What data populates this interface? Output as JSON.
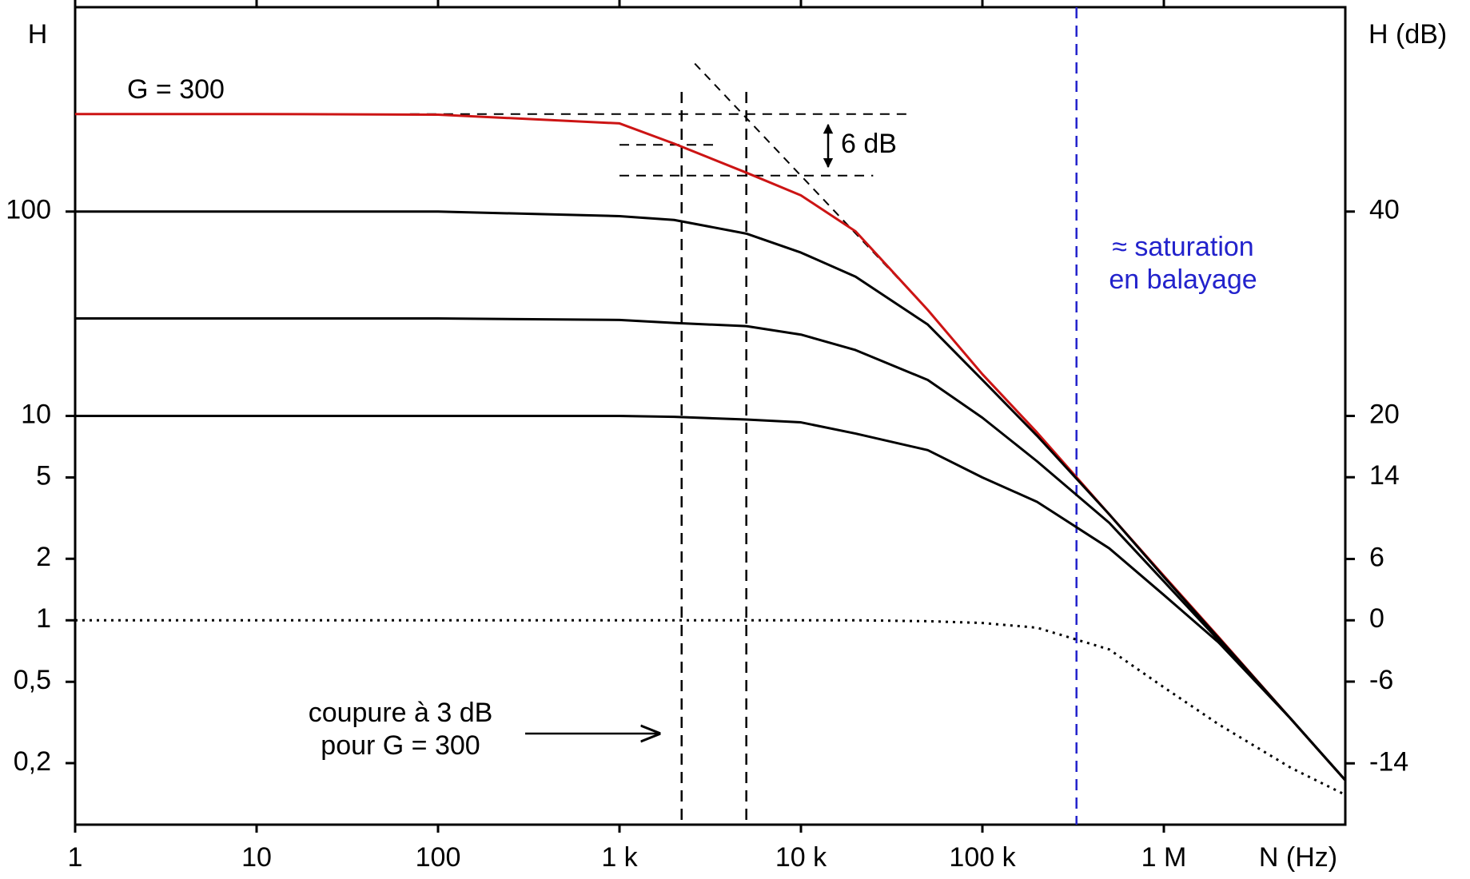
{
  "chart_data": {
    "type": "line",
    "y_label": "H",
    "y2_label": "H  (dB)",
    "x_label": "N  (Hz)",
    "xscale": "log",
    "yscale": "log",
    "xlim": [
      1,
      10000000
    ],
    "ylim": [
      0.1,
      1000
    ],
    "y2lim": [
      -20,
      60
    ],
    "xticks": [
      1,
      10,
      100,
      {
        "value": 1000,
        "label": "1 k"
      },
      {
        "value": 10000,
        "label": "10 k"
      },
      {
        "value": 100000,
        "label": "100 k"
      },
      {
        "value": 1000000,
        "label": "1 M"
      }
    ],
    "yticks": [
      {
        "value": 0.2,
        "label": "0,2"
      },
      {
        "value": 0.5,
        "label": "0,5"
      },
      1,
      2,
      5,
      10,
      100
    ],
    "y2ticks": [
      -14,
      -6,
      0,
      6,
      14,
      20,
      40
    ],
    "x": [
      1,
      10,
      100,
      1000,
      2000,
      5000,
      10000,
      20000,
      50000,
      100000,
      200000,
      500000,
      1000000,
      2000000,
      5000000,
      10000000
    ],
    "series": [
      {
        "color": "#cc1414",
        "style": "solid",
        "values": [
          300,
          300,
          298,
          270,
          215,
          155,
          120,
          80,
          33,
          16,
          8.3,
          3.3,
          1.65,
          0.83,
          0.33,
          0.165
        ]
      },
      {
        "color": "#000000",
        "style": "solid",
        "values": [
          100,
          100,
          100,
          95,
          91,
          78,
          63,
          48,
          28,
          15,
          8,
          3.3,
          1.63,
          0.82,
          0.33,
          0.165
        ]
      },
      {
        "color": "#000000",
        "style": "solid",
        "values": [
          30,
          30,
          30,
          29.5,
          28.5,
          27.5,
          25,
          21,
          15,
          9.8,
          6,
          3,
          1.55,
          0.8,
          0.33,
          0.165
        ]
      },
      {
        "color": "#000000",
        "style": "solid",
        "values": [
          10,
          10,
          10,
          10,
          9.9,
          9.6,
          9.3,
          8.2,
          6.8,
          5,
          3.8,
          2.25,
          1.33,
          0.78,
          0.33,
          0.165
        ]
      },
      {
        "color": "#000000",
        "style": "dotted",
        "values": [
          1,
          1,
          1,
          1,
          1,
          1,
          1,
          1,
          0.99,
          0.97,
          0.92,
          0.72,
          0.47,
          0.31,
          0.19,
          0.14
        ]
      }
    ],
    "vlines": [
      {
        "x": 2200,
        "ytop": 385,
        "color": "#000000"
      },
      {
        "x": 5000,
        "ytop": 385,
        "color": "#000000"
      },
      {
        "x": 330000,
        "color": "#2222cc"
      }
    ],
    "hguides": [
      {
        "y": 300,
        "x": [
          70,
          40000
        ]
      },
      {
        "y": 212,
        "x": [
          1000,
          3500
        ]
      },
      {
        "y": 150,
        "x": [
          1000,
          25000
        ]
      }
    ],
    "asymptote": {
      "x": [
        2600,
        42000
      ],
      "y": [
        530,
        39
      ]
    },
    "annotations": [
      "G = 300",
      "6 dB",
      "≈ saturation",
      "en balayage",
      "coupure à 3 dB",
      "pour  G = 300"
    ]
  }
}
